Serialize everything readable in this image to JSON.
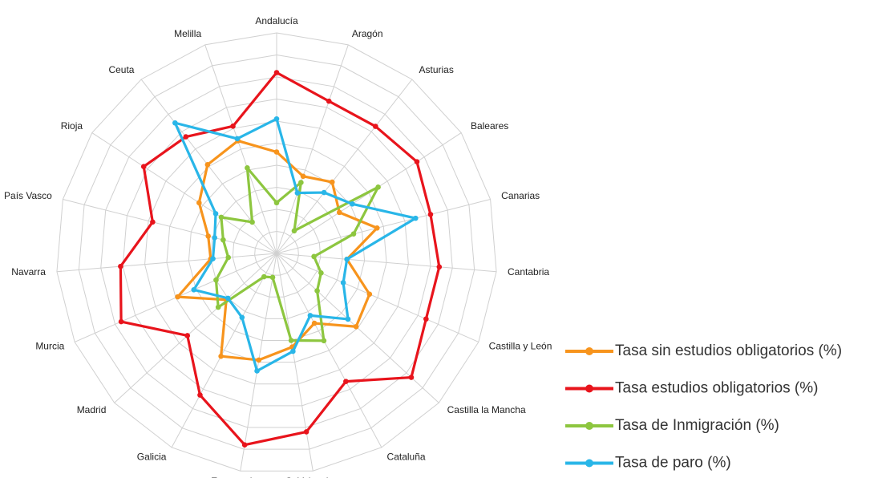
{
  "chart_data": {
    "type": "radar",
    "categories": [
      "Andalucía",
      "Aragón",
      "Asturias",
      "Baleares",
      "Canarias",
      "Cantabria",
      "Castilla y León",
      "Castilla la Mancha",
      "Cataluña",
      "C. Valenciana",
      "Extremadura",
      "Galicia",
      "Madrid",
      "Murcia",
      "Navarra",
      "País Vasco",
      "Rioja",
      "Ceuta",
      "Melilla"
    ],
    "series": [
      {
        "name": "Tasa sin estudios obligatorios (%)",
        "color": "#f7941d",
        "values": [
          46,
          37,
          41,
          34,
          47,
          32,
          46,
          49,
          36,
          43,
          49,
          53,
          31,
          49,
          30,
          32,
          42,
          51,
          54
        ]
      },
      {
        "name": "Tasa estudios obligatorios (%)",
        "color": "#e8141c",
        "values": [
          82,
          73,
          73,
          76,
          72,
          74,
          74,
          83,
          66,
          82,
          88,
          73,
          55,
          77,
          71,
          58,
          72,
          67,
          61
        ]
      },
      {
        "name": "Tasa de Inmigración (%)",
        "color": "#8dc63f",
        "values": [
          23,
          34,
          13,
          55,
          36,
          17,
          22,
          25,
          45,
          40,
          11,
          12,
          36,
          30,
          22,
          25,
          30,
          18,
          41
        ]
      },
      {
        "name": "Tasa de paro (%)",
        "color": "#29b6e8",
        "values": [
          61,
          29,
          35,
          41,
          65,
          32,
          33,
          44,
          32,
          45,
          54,
          33,
          30,
          41,
          29,
          29,
          33,
          75,
          55
        ]
      }
    ],
    "ylim": [
      0,
      100
    ],
    "yticks": [
      0,
      10,
      20,
      30,
      40,
      50,
      60,
      70,
      80,
      90,
      100
    ],
    "grid": true
  }
}
